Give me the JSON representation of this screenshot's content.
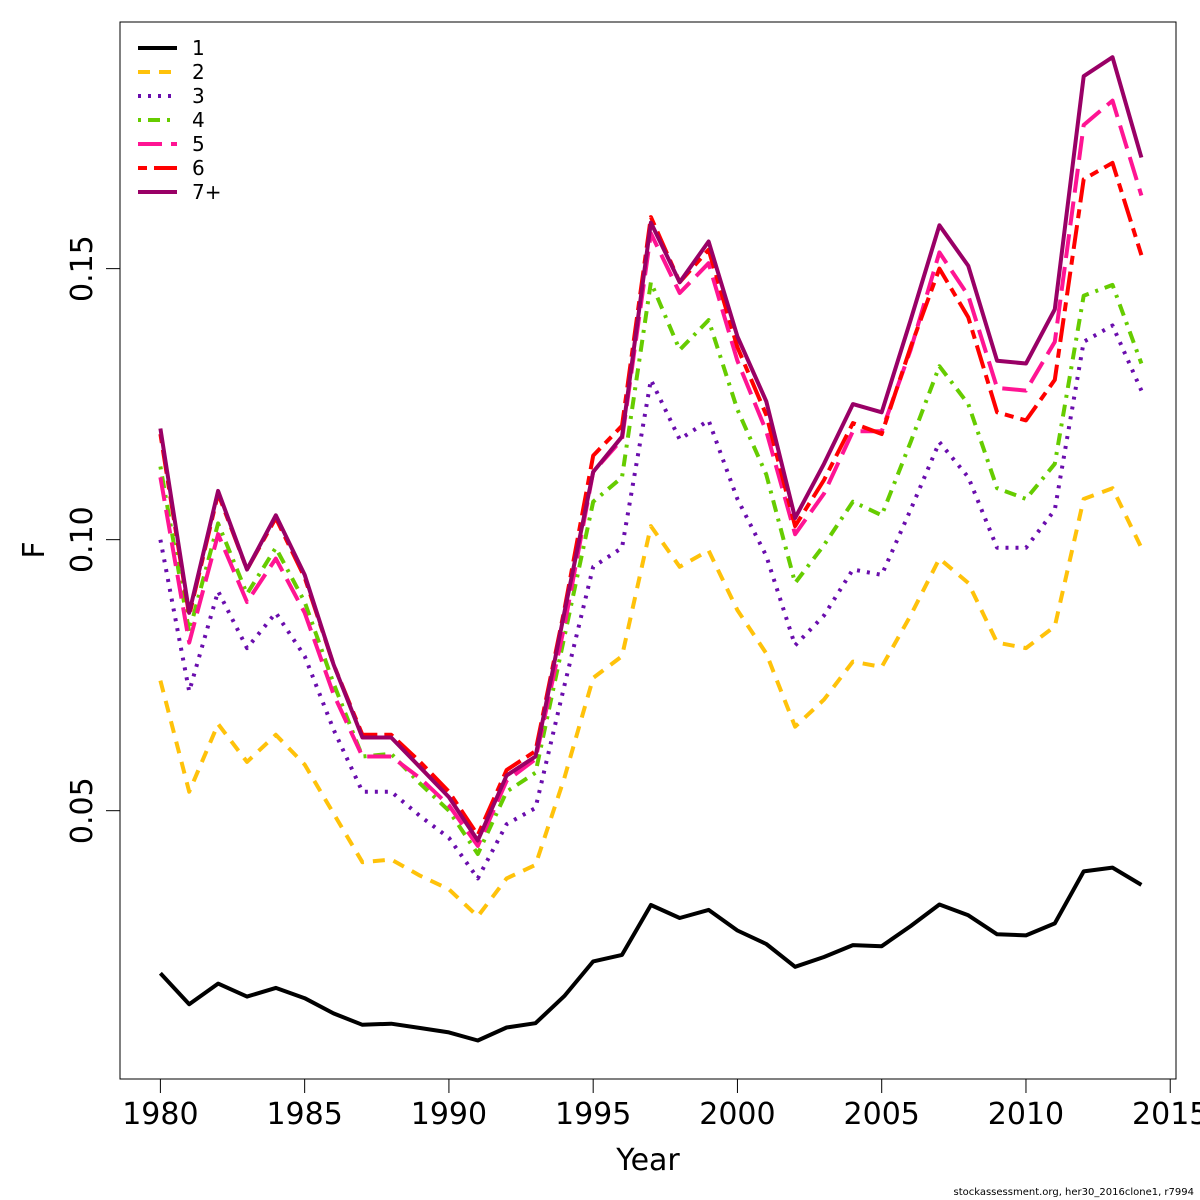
{
  "credit": "stockassessment.org, her30_2016clone1, r7994",
  "chart_data": {
    "type": "line",
    "title": "",
    "xlabel": "Year",
    "ylabel": "F",
    "xlim": [
      1978.6,
      2015.2
    ],
    "ylim": [
      0.0005,
      0.1955
    ],
    "xticks": [
      1980,
      1985,
      1990,
      1995,
      2000,
      2005,
      2010,
      2015
    ],
    "yticks": [
      0.05,
      0.1,
      0.15
    ],
    "ytick_labels": [
      "0.05",
      "0.10",
      "0.15"
    ],
    "grid": false,
    "legend_position": "top-left",
    "x": [
      1980,
      1981,
      1982,
      1983,
      1984,
      1985,
      1986,
      1987,
      1988,
      1989,
      1990,
      1991,
      1992,
      1993,
      1994,
      1995,
      1996,
      1997,
      1998,
      1999,
      2000,
      2001,
      2002,
      2003,
      2004,
      2005,
      2006,
      2007,
      2008,
      2009,
      2010,
      2011,
      2012,
      2013,
      2014
    ],
    "series": [
      {
        "name": "1",
        "color": "#000000",
        "dash": "solid",
        "values": [
          0.02,
          0.0143,
          0.0181,
          0.0157,
          0.0173,
          0.0154,
          0.0126,
          0.0105,
          0.0107,
          0.0099,
          0.0091,
          0.0076,
          0.01,
          0.0108,
          0.0158,
          0.0222,
          0.0234,
          0.0326,
          0.0302,
          0.0317,
          0.0279,
          0.0254,
          0.0212,
          0.023,
          0.0252,
          0.025,
          0.0287,
          0.0327,
          0.0307,
          0.0272,
          0.027,
          0.0292,
          0.0388,
          0.0395,
          0.0363
        ]
      },
      {
        "name": "2",
        "color": "#FFC20A",
        "dash": "dashed",
        "values": [
          0.074,
          0.0535,
          0.066,
          0.059,
          0.064,
          0.0585,
          0.0495,
          0.0405,
          0.041,
          0.038,
          0.0355,
          0.0305,
          0.0375,
          0.04,
          0.056,
          0.0745,
          0.0785,
          0.1025,
          0.095,
          0.098,
          0.087,
          0.079,
          0.0655,
          0.0705,
          0.0775,
          0.0765,
          0.086,
          0.0965,
          0.092,
          0.081,
          0.08,
          0.084,
          0.1075,
          0.1095,
          0.0985
        ]
      },
      {
        "name": "3",
        "color": "#6A0DAD",
        "dash": "dotted",
        "values": [
          0.1,
          0.072,
          0.0905,
          0.08,
          0.0865,
          0.0785,
          0.065,
          0.0535,
          0.0535,
          0.049,
          0.045,
          0.0375,
          0.0475,
          0.0505,
          0.073,
          0.095,
          0.0985,
          0.1295,
          0.1185,
          0.122,
          0.1075,
          0.097,
          0.0805,
          0.086,
          0.0945,
          0.0935,
          0.1055,
          0.118,
          0.1115,
          0.0985,
          0.0985,
          0.1055,
          0.1365,
          0.1395,
          0.1275
        ]
      },
      {
        "name": "4",
        "color": "#66CC00",
        "dash": "dotdash",
        "values": [
          0.1135,
          0.083,
          0.103,
          0.09,
          0.0985,
          0.0885,
          0.0735,
          0.06,
          0.0605,
          0.055,
          0.05,
          0.042,
          0.0535,
          0.057,
          0.082,
          0.107,
          0.1115,
          0.1475,
          0.135,
          0.1405,
          0.124,
          0.112,
          0.092,
          0.099,
          0.107,
          0.1045,
          0.118,
          0.132,
          0.125,
          0.1095,
          0.1075,
          0.114,
          0.145,
          0.147,
          0.1325
        ]
      },
      {
        "name": "5",
        "color": "#FF1493",
        "dash": "longdash",
        "values": [
          0.1115,
          0.081,
          0.101,
          0.0885,
          0.0965,
          0.0865,
          0.0715,
          0.06,
          0.06,
          0.056,
          0.051,
          0.0435,
          0.0555,
          0.0595,
          0.084,
          0.1125,
          0.1185,
          0.1565,
          0.1455,
          0.151,
          0.133,
          0.12,
          0.101,
          0.1085,
          0.12,
          0.12,
          0.135,
          0.153,
          0.145,
          0.128,
          0.1275,
          0.1365,
          0.1765,
          0.181,
          0.1635
        ]
      },
      {
        "name": "6",
        "color": "#FF0000",
        "dash": "twodash",
        "values": [
          0.1195,
          0.086,
          0.1085,
          0.0945,
          0.104,
          0.093,
          0.077,
          0.064,
          0.064,
          0.059,
          0.0535,
          0.0455,
          0.0575,
          0.061,
          0.087,
          0.1155,
          0.121,
          0.1595,
          0.1475,
          0.1535,
          0.1355,
          0.123,
          0.1025,
          0.111,
          0.1215,
          0.1195,
          0.1355,
          0.15,
          0.141,
          0.1235,
          0.122,
          0.1295,
          0.1665,
          0.1695,
          0.1525
        ]
      },
      {
        "name": "7+",
        "color": "#990066",
        "dash": "solid",
        "values": [
          0.1205,
          0.0865,
          0.109,
          0.0945,
          0.1045,
          0.0935,
          0.077,
          0.0635,
          0.0635,
          0.058,
          0.0525,
          0.0445,
          0.0565,
          0.06,
          0.0865,
          0.1125,
          0.119,
          0.1585,
          0.1475,
          0.155,
          0.1375,
          0.1255,
          0.104,
          0.114,
          0.125,
          0.1235,
          0.1405,
          0.158,
          0.1505,
          0.133,
          0.1325,
          0.1425,
          0.1855,
          0.189,
          0.1705
        ]
      }
    ]
  }
}
